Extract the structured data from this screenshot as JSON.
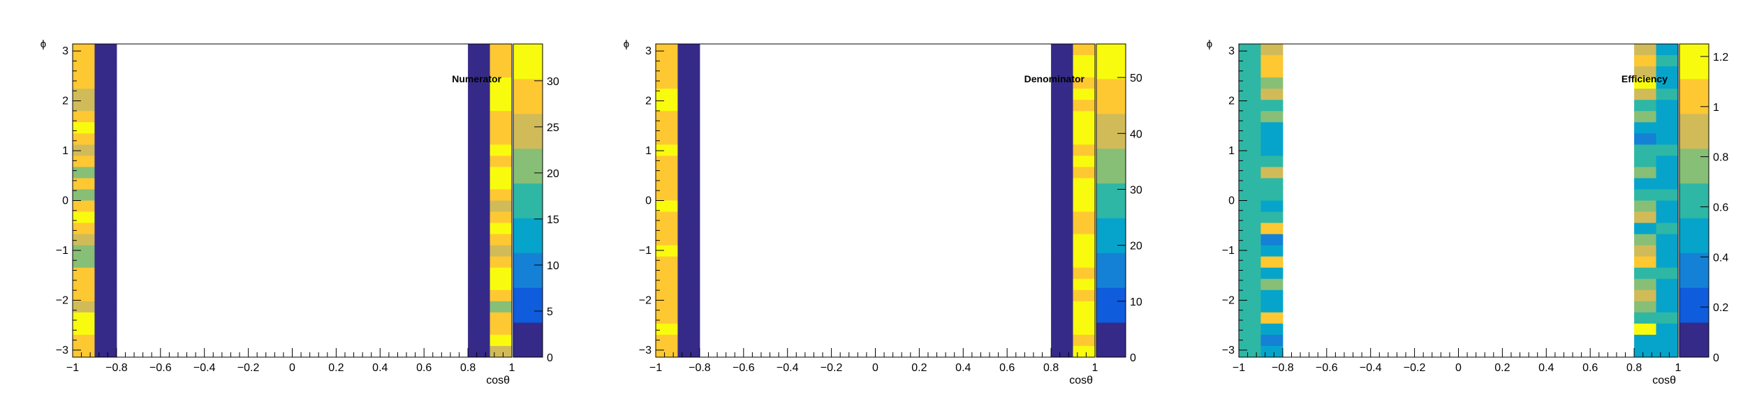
{
  "chart_data": [
    {
      "type": "heatmap",
      "title": "Numerator",
      "xlabel": "cosθ",
      "ylabel": "ϕ",
      "xlim": [
        -1,
        1
      ],
      "ylim": [
        -3.14159,
        3.14159
      ],
      "x_ticks": [
        "−1",
        "−0.8",
        "−0.6",
        "−0.4",
        "−0.2",
        "0",
        "0.2",
        "0.4",
        "0.6",
        "0.8",
        "1"
      ],
      "y_ticks": [
        "−3",
        "−2",
        "−1",
        "0",
        "1",
        "2",
        "3"
      ],
      "colorbar": {
        "min": 0,
        "max": 34,
        "ticks": [
          0,
          5,
          10,
          15,
          20,
          25,
          30
        ]
      },
      "columns": [
        {
          "x_range": [
            -1.0,
            -0.9
          ],
          "values": [
            30,
            29,
            27,
            29,
            26,
            23,
            30,
            31,
            27,
            24,
            29,
            22,
            30,
            21,
            28,
            31,
            28,
            26,
            21,
            22,
            28,
            30,
            27,
            25,
            32,
            31,
            29,
            28
          ]
        },
        {
          "x_range": [
            -0.9,
            -0.8
          ],
          "values": [
            1,
            1,
            1,
            1,
            1,
            1,
            1,
            1,
            1,
            1,
            1,
            1,
            1,
            1,
            1,
            1,
            1,
            1,
            1,
            1,
            1,
            1,
            1,
            1,
            1,
            1,
            1,
            1
          ]
        },
        {
          "x_range": [
            0.8,
            0.9
          ],
          "values": [
            1,
            1,
            1,
            1,
            1,
            1,
            1,
            1,
            1,
            1,
            1,
            1,
            1,
            1,
            1,
            1,
            1,
            1,
            1,
            1,
            1,
            1,
            1,
            1,
            1,
            1,
            1,
            1
          ]
        },
        {
          "x_range": [
            0.9,
            1.0
          ],
          "values": [
            27,
            29,
            28,
            31,
            33,
            31,
            29,
            27,
            30,
            32,
            29,
            31,
            34,
            30,
            26,
            29,
            32,
            30,
            23,
            29,
            31,
            33,
            27,
            22,
            28,
            30,
            31,
            26
          ]
        }
      ]
    },
    {
      "type": "heatmap",
      "title": "Denominator",
      "xlabel": "cosθ",
      "ylabel": "ϕ",
      "xlim": [
        -1,
        1
      ],
      "ylim": [
        -3.14159,
        3.14159
      ],
      "x_ticks": [
        "−1",
        "−0.8",
        "−0.6",
        "−0.4",
        "−0.2",
        "0",
        "0.2",
        "0.4",
        "0.6",
        "0.8",
        "1"
      ],
      "y_ticks": [
        "−3",
        "−2",
        "−1",
        "0",
        "1",
        "2",
        "3"
      ],
      "colorbar": {
        "min": 0,
        "max": 56,
        "ticks": [
          0,
          10,
          20,
          30,
          40,
          50
        ]
      },
      "columns": [
        {
          "x_range": [
            -1.0,
            -0.9
          ],
          "values": [
            46,
            48,
            47,
            49,
            50,
            53,
            48,
            47,
            49,
            51,
            48,
            47,
            46,
            48,
            52,
            48,
            47,
            49,
            50,
            48,
            47,
            46,
            49,
            48,
            47,
            50,
            48,
            47
          ]
        },
        {
          "x_range": [
            -0.9,
            -0.8
          ],
          "values": [
            1,
            1,
            1,
            1,
            1,
            1,
            1,
            1,
            1,
            1,
            1,
            1,
            1,
            1,
            1,
            1,
            1,
            1,
            1,
            1,
            1,
            1,
            1,
            1,
            1,
            1,
            1,
            1
          ]
        },
        {
          "x_range": [
            0.8,
            0.9
          ],
          "values": [
            1,
            1,
            1,
            1,
            1,
            1,
            1,
            1,
            1,
            1,
            1,
            1,
            1,
            1,
            1,
            1,
            1,
            1,
            1,
            1,
            1,
            1,
            1,
            1,
            1,
            1,
            1,
            1
          ]
        },
        {
          "x_range": [
            0.9,
            1.0
          ],
          "values": [
            48,
            50,
            52,
            49,
            51,
            48,
            50,
            53,
            51,
            49,
            52,
            48,
            50,
            54,
            51,
            44,
            48,
            53,
            52,
            50,
            49,
            51,
            48,
            53,
            51,
            52,
            49,
            50
          ]
        }
      ]
    },
    {
      "type": "heatmap",
      "title": "Efficiency",
      "xlabel": "cosθ",
      "ylabel": "ϕ",
      "xlim": [
        -1,
        1
      ],
      "ylim": [
        -3.14159,
        3.14159
      ],
      "x_ticks": [
        "−1",
        "−0.8",
        "−0.6",
        "−0.4",
        "−0.2",
        "0",
        "0.2",
        "0.4",
        "0.6",
        "0.8",
        "1"
      ],
      "y_ticks": [
        "−3",
        "−2",
        "−1",
        "0",
        "1",
        "2",
        "3"
      ],
      "colorbar": {
        "min": 0,
        "max": 1.25,
        "ticks": [
          0,
          0.2,
          0.4,
          0.6,
          0.8,
          1,
          1.2
        ]
      },
      "columns": [
        {
          "x_range": [
            -1.0,
            -0.9
          ],
          "values": [
            0.6,
            0.62,
            0.6,
            0.62,
            0.61,
            0.6,
            0.62,
            0.6,
            0.61,
            0.6,
            0.62,
            0.6,
            0.61,
            0.6,
            0.62,
            0.6,
            0.61,
            0.6,
            0.62,
            0.6,
            0.61,
            0.6,
            0.62,
            0.6,
            0.61,
            0.6,
            0.62,
            0.6
          ]
        },
        {
          "x_range": [
            -0.9,
            -0.8
          ],
          "values": [
            0.9,
            0.98,
            1.02,
            0.8,
            0.88,
            0.62,
            0.78,
            0.55,
            0.52,
            0.48,
            0.58,
            0.88,
            0.58,
            0.62,
            0.52,
            0.6,
            1.05,
            0.35,
            0.55,
            0.98,
            0.52,
            0.74,
            0.42,
            0.5,
            1.0,
            0.52,
            0.35,
            0.42
          ]
        },
        {
          "x_range": [
            0.8,
            0.9
          ],
          "values": [
            0.9,
            0.98,
            0.9,
            1.18,
            0.85,
            0.62,
            0.7,
            0.55,
            0.4,
            0.62,
            0.68,
            0.72,
            0.5,
            0.62,
            0.78,
            0.85,
            0.55,
            0.72,
            0.88,
            0.98,
            0.6,
            0.82,
            0.95,
            0.72,
            0.6,
            1.22,
            0.42,
            0.42
          ]
        },
        {
          "x_range": [
            0.9,
            1.0
          ],
          "values": [
            0.55,
            0.58,
            0.55,
            0.52,
            0.56,
            0.55,
            0.52,
            0.5,
            0.55,
            0.56,
            0.5,
            0.55,
            0.52,
            0.56,
            0.55,
            0.5,
            0.56,
            0.55,
            0.52,
            0.55,
            0.56,
            0.5,
            0.55,
            0.52,
            0.56,
            0.55,
            0.52,
            0.5
          ]
        }
      ]
    }
  ],
  "colors": {
    "palette": [
      "#352a87",
      "#0f5cdd",
      "#1481d6",
      "#06a4ca",
      "#2eb7a4",
      "#87bf77",
      "#d1bb59",
      "#fec832",
      "#f9fb0e"
    ],
    "frame": "#000000",
    "background": "#ffffff"
  }
}
